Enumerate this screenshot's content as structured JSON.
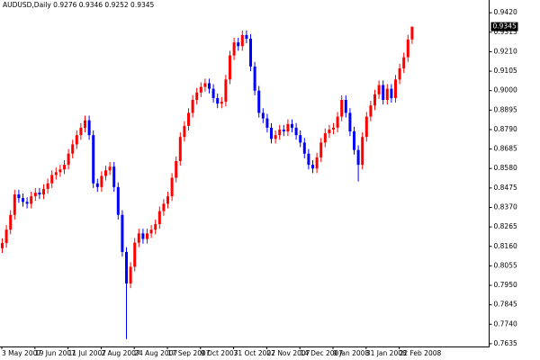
{
  "chart_data": {
    "type": "candlestick",
    "title": "AUDUSD,Daily  0.9276 0.9346 0.9252 0.9345",
    "current_price": 0.9345,
    "up_color": "#ff0000",
    "down_color": "#0000ff",
    "ylim": [
      0.762,
      0.945
    ],
    "yticks": [
      {
        "value": 0.942,
        "label": "0.9420"
      },
      0.9315,
      {
        "value": 0.921,
        "label": "0.9210"
      },
      0.9105,
      {
        "value": 0.9,
        "label": "0.9000"
      },
      0.8895,
      {
        "value": 0.879,
        "label": "0.8790"
      },
      0.8685,
      {
        "value": 0.858,
        "label": "0.8580"
      },
      0.8475,
      {
        "value": 0.837,
        "label": "0.8370"
      },
      0.8265,
      {
        "value": 0.816,
        "label": "0.8160"
      },
      0.8055,
      {
        "value": 0.795,
        "label": "0.7950"
      },
      0.7845,
      {
        "value": 0.774,
        "label": "0.7740"
      },
      0.7635
    ],
    "categories": [
      "3 May 2007",
      null,
      null,
      null,
      null,
      null,
      null,
      null,
      "19 Jun 2007",
      null,
      null,
      null,
      null,
      null,
      null,
      null,
      "11 Jul 2007",
      null,
      null,
      null,
      null,
      null,
      null,
      null,
      "2 Aug 2007",
      null,
      null,
      null,
      null,
      null,
      null,
      null,
      "24 Aug 2007",
      null,
      null,
      null,
      null,
      null,
      null,
      null,
      "17 Sep 2007",
      null,
      null,
      null,
      null,
      null,
      null,
      null,
      "9 Oct 2007",
      null,
      null,
      null,
      null,
      null,
      null,
      null,
      "31 Oct 2007",
      null,
      null,
      null,
      null,
      null,
      null,
      null,
      "22 Nov 2007",
      null,
      null,
      null,
      null,
      null,
      null,
      null,
      "14 Dec 2007",
      null,
      null,
      null,
      null,
      null,
      null,
      null,
      "9 Jan 2008",
      null,
      null,
      null,
      null,
      null,
      null,
      null,
      "31 Jan 2008",
      null,
      null,
      null,
      null,
      null,
      null,
      null,
      "22 Feb 2008",
      null,
      null,
      null
    ],
    "open": [
      0.815,
      0.8178,
      0.825,
      0.833,
      0.844,
      0.842,
      0.84,
      0.839,
      0.843,
      0.845,
      0.844,
      0.847,
      0.85,
      0.8545,
      0.856,
      0.8575,
      0.86,
      0.866,
      0.871,
      0.876,
      0.88,
      0.884,
      0.876,
      0.85,
      0.848,
      0.854,
      0.857,
      0.859,
      0.848,
      0.833,
      0.813,
      0.796,
      0.805,
      0.818,
      0.823,
      0.82,
      0.823,
      0.825,
      0.828,
      0.835,
      0.839,
      0.843,
      0.853,
      0.862,
      0.875,
      0.881,
      0.888,
      0.895,
      0.899,
      0.902,
      0.904,
      0.901,
      0.896,
      0.893,
      0.894,
      0.906,
      0.919,
      0.926,
      0.924,
      0.93,
      0.928,
      0.913,
      0.9,
      0.888,
      0.885,
      0.88,
      0.874,
      0.876,
      0.879,
      0.878,
      0.882,
      0.88,
      0.876,
      0.872,
      0.866,
      0.86,
      0.858,
      0.864,
      0.872,
      0.877,
      0.879,
      0.88,
      0.886,
      0.895,
      0.888,
      0.878,
      0.868,
      0.86,
      0.875,
      0.886,
      0.892,
      0.898,
      0.903,
      0.895,
      0.901,
      0.896,
      0.906,
      0.912,
      0.918,
      0.9276
    ],
    "high": [
      0.8203,
      0.8275,
      0.8355,
      0.8465,
      0.8465,
      0.8445,
      0.8425,
      0.8455,
      0.8475,
      0.8475,
      0.8495,
      0.8525,
      0.857,
      0.8585,
      0.86,
      0.8625,
      0.8685,
      0.8735,
      0.8785,
      0.8825,
      0.8865,
      0.8865,
      0.8785,
      0.8525,
      0.8565,
      0.8595,
      0.8615,
      0.8615,
      0.8505,
      0.8355,
      0.8155,
      0.8075,
      0.8205,
      0.8255,
      0.8255,
      0.8255,
      0.8275,
      0.8305,
      0.8375,
      0.8415,
      0.8455,
      0.8555,
      0.8645,
      0.8775,
      0.8835,
      0.8905,
      0.8975,
      0.9015,
      0.9045,
      0.9065,
      0.9065,
      0.9035,
      0.8985,
      0.8965,
      0.9085,
      0.9215,
      0.9285,
      0.9285,
      0.9325,
      0.9325,
      0.9305,
      0.9155,
      0.9025,
      0.8905,
      0.8875,
      0.8825,
      0.8785,
      0.8815,
      0.8815,
      0.8845,
      0.8845,
      0.8825,
      0.8785,
      0.8745,
      0.8685,
      0.8625,
      0.8665,
      0.8745,
      0.8795,
      0.8815,
      0.8825,
      0.8885,
      0.8975,
      0.8975,
      0.8905,
      0.8805,
      0.8705,
      0.8775,
      0.8885,
      0.8945,
      0.9005,
      0.9055,
      0.9055,
      0.9035,
      0.9035,
      0.9085,
      0.9145,
      0.9205,
      0.9301,
      0.9346
    ],
    "low": [
      0.8125,
      0.8153,
      0.8225,
      0.8305,
      0.8395,
      0.8375,
      0.8365,
      0.8365,
      0.8405,
      0.8415,
      0.8415,
      0.8445,
      0.8475,
      0.852,
      0.8535,
      0.855,
      0.8575,
      0.8635,
      0.8685,
      0.8735,
      0.8775,
      0.8735,
      0.8475,
      0.8455,
      0.8455,
      0.8515,
      0.8545,
      0.8455,
      0.8305,
      0.8105,
      0.766,
      0.7935,
      0.8025,
      0.8155,
      0.8175,
      0.8175,
      0.8205,
      0.8225,
      0.8255,
      0.8325,
      0.8365,
      0.8405,
      0.8505,
      0.8595,
      0.8725,
      0.8785,
      0.8855,
      0.8925,
      0.8965,
      0.8995,
      0.8985,
      0.8935,
      0.8905,
      0.8905,
      0.8915,
      0.9035,
      0.9165,
      0.9215,
      0.9215,
      0.9255,
      0.9105,
      0.8975,
      0.8855,
      0.8825,
      0.8775,
      0.8715,
      0.8715,
      0.8735,
      0.8755,
      0.8755,
      0.8775,
      0.8735,
      0.8695,
      0.8635,
      0.8575,
      0.8555,
      0.8555,
      0.8615,
      0.8695,
      0.8745,
      0.8765,
      0.8775,
      0.8835,
      0.8855,
      0.8755,
      0.8655,
      0.851,
      0.8575,
      0.8725,
      0.8835,
      0.8895,
      0.8955,
      0.8925,
      0.8925,
      0.8935,
      0.8935,
      0.9035,
      0.9095,
      0.9155,
      0.9252
    ],
    "close": [
      0.8178,
      0.825,
      0.833,
      0.844,
      0.842,
      0.84,
      0.839,
      0.843,
      0.845,
      0.844,
      0.847,
      0.85,
      0.8545,
      0.856,
      0.8575,
      0.86,
      0.866,
      0.871,
      0.876,
      0.88,
      0.884,
      0.876,
      0.85,
      0.848,
      0.854,
      0.857,
      0.859,
      0.848,
      0.833,
      0.813,
      0.796,
      0.805,
      0.818,
      0.823,
      0.82,
      0.823,
      0.825,
      0.828,
      0.835,
      0.839,
      0.843,
      0.853,
      0.862,
      0.875,
      0.881,
      0.888,
      0.895,
      0.899,
      0.902,
      0.904,
      0.901,
      0.896,
      0.893,
      0.894,
      0.906,
      0.919,
      0.926,
      0.924,
      0.93,
      0.928,
      0.913,
      0.9,
      0.888,
      0.885,
      0.88,
      0.874,
      0.876,
      0.879,
      0.878,
      0.882,
      0.88,
      0.876,
      0.872,
      0.866,
      0.86,
      0.858,
      0.864,
      0.872,
      0.877,
      0.879,
      0.88,
      0.886,
      0.895,
      0.888,
      0.878,
      0.868,
      0.86,
      0.875,
      0.886,
      0.892,
      0.898,
      0.903,
      0.895,
      0.901,
      0.896,
      0.906,
      0.912,
      0.918,
      0.9276,
      0.9345
    ]
  }
}
